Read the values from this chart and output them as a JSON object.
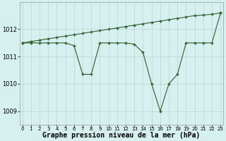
{
  "x": [
    0,
    1,
    2,
    3,
    4,
    5,
    6,
    7,
    8,
    9,
    10,
    11,
    12,
    13,
    14,
    15,
    16,
    17,
    18,
    19,
    20,
    21,
    22,
    23
  ],
  "y_pressure": [
    1011.5,
    1011.5,
    1011.5,
    1011.5,
    1011.5,
    1011.5,
    1011.4,
    1010.35,
    1010.35,
    1011.5,
    1011.5,
    1011.5,
    1011.5,
    1011.45,
    1011.15,
    1010.0,
    1009.0,
    1010.0,
    1010.35,
    1011.5,
    1011.5,
    1011.5,
    1011.5,
    1012.6
  ],
  "y_diagonal": [
    1011.5,
    1011.55,
    1011.6,
    1011.65,
    1011.7,
    1011.75,
    1011.8,
    1011.85,
    1011.9,
    1011.95,
    1012.0,
    1012.05,
    1012.1,
    1012.15,
    1012.2,
    1012.25,
    1012.3,
    1012.35,
    1012.4,
    1012.45,
    1012.5,
    1012.52,
    1012.55,
    1012.6
  ],
  "line_color": "#2d5e2d",
  "marker": "+",
  "markersize": 3,
  "markeredgewidth": 1.0,
  "linewidth": 0.8,
  "background_color": "#d6efef",
  "grid_color": "#b8d4d4",
  "xlabel": "Graphe pression niveau de la mer (hPa)",
  "xlabel_fontsize": 7,
  "ylabel_ticks": [
    1009,
    1010,
    1011,
    1012
  ],
  "ylabel_fontsize": 6,
  "xtick_fontsize": 5,
  "xlim": [
    -0.3,
    23.3
  ],
  "ylim": [
    1008.5,
    1013.0
  ],
  "figsize": [
    3.2,
    2.0
  ],
  "dpi": 100
}
